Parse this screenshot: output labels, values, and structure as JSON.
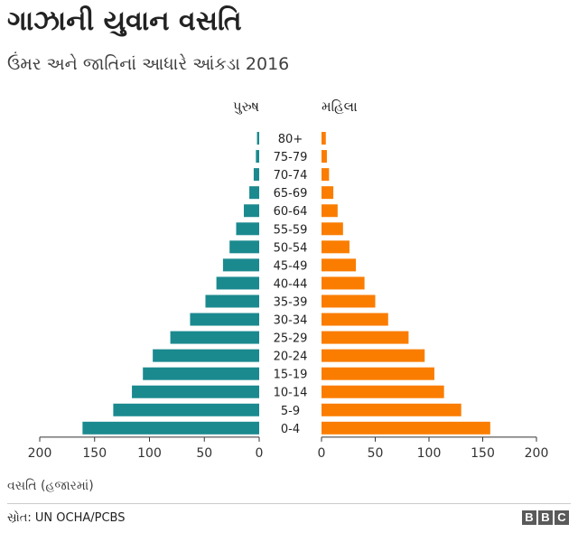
{
  "header": {
    "title": "ગાઝાની યુવાન વસતિ",
    "subtitle": "ઉંમર અને જાતિનાં આધારે આંકડા 2016"
  },
  "chart_data": {
    "type": "bar",
    "orientation": "horizontal-population-pyramid",
    "categories": [
      "80+",
      "75-79",
      "70-74",
      "65-69",
      "60-64",
      "55-59",
      "50-54",
      "45-49",
      "40-44",
      "35-39",
      "30-34",
      "25-29",
      "20-24",
      "15-19",
      "10-14",
      "5-9",
      "0-4"
    ],
    "series": [
      {
        "name": "પુરુષ",
        "color": "#1b8a8f",
        "values": [
          2,
          3,
          5,
          9,
          14,
          21,
          27,
          33,
          39,
          49,
          63,
          81,
          97,
          106,
          116,
          133,
          161
        ]
      },
      {
        "name": "મહિલા",
        "color": "#fa7d00",
        "values": [
          4,
          5,
          7,
          11,
          15,
          20,
          26,
          32,
          40,
          50,
          62,
          81,
          96,
          105,
          114,
          130,
          157
        ]
      }
    ],
    "xlim": [
      0,
      200
    ],
    "xticks": [
      "200",
      "150",
      "100",
      "50",
      "0"
    ],
    "xticks_right": [
      "0",
      "50",
      "100",
      "150",
      "200"
    ],
    "xlabel": "વસતિ (હજારમાં)",
    "grid": false
  },
  "footer": {
    "source": "સ્રોત: UN OCHA/PCBS",
    "logo": [
      "B",
      "B",
      "C"
    ]
  }
}
